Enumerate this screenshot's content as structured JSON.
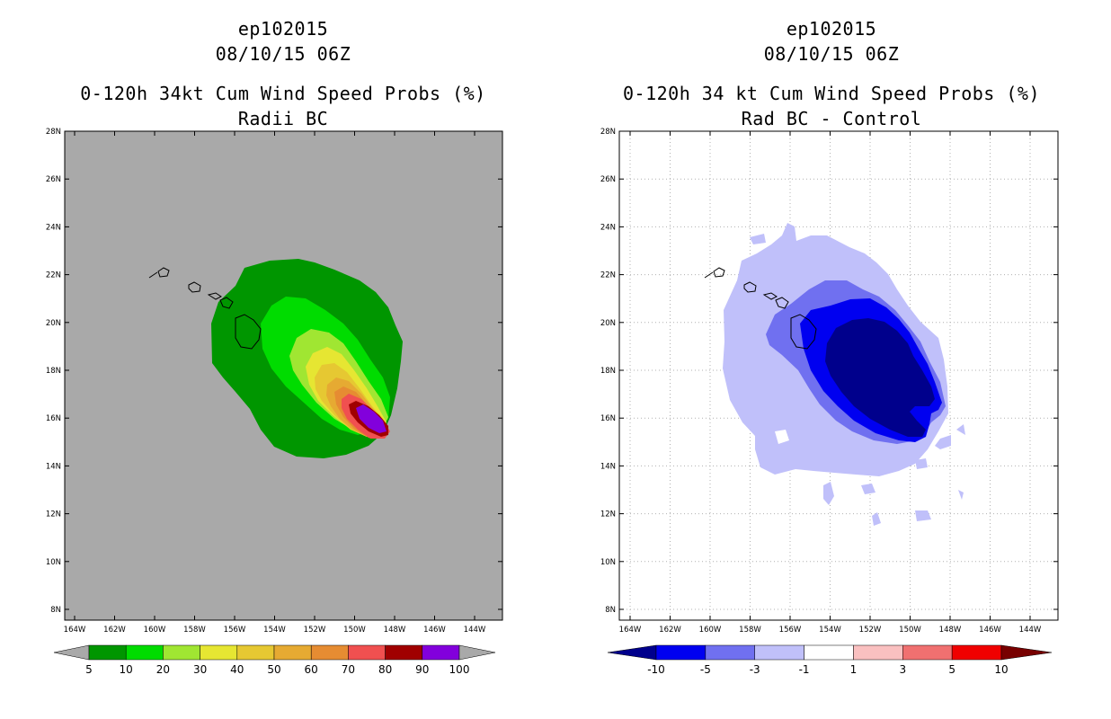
{
  "left_panel": {
    "storm_id": "ep102015",
    "datetime": "08/10/15 06Z",
    "title": "0-120h 34kt Cum Wind Speed Probs (%)",
    "subtitle": "Radii BC",
    "background_color": "#a9a9a9",
    "colorbar": {
      "colors": [
        "#009600",
        "#00dc00",
        "#a0e632",
        "#e6e632",
        "#e6c832",
        "#e6aa32",
        "#e68c32",
        "#f05050",
        "#a00000",
        "#8200dc"
      ],
      "labels": [
        "5",
        "10",
        "20",
        "30",
        "40",
        "50",
        "60",
        "70",
        "80",
        "90",
        "100"
      ]
    }
  },
  "right_panel": {
    "storm_id": "ep102015",
    "datetime": "08/10/15 06Z",
    "title": "0-120h 34 kt Cum Wind Speed Probs (%)",
    "subtitle": "Rad BC - Control",
    "background_color": "#ffffff",
    "colorbar": {
      "colors": [
        "#00008c",
        "#0000f0",
        "#7070f0",
        "#c0c0fa",
        "#ffffff",
        "#fac0c0",
        "#f07070",
        "#f00000",
        "#780000"
      ],
      "labels": [
        "-10",
        "-5",
        "-3",
        "-1",
        "1",
        "3",
        "5",
        "10"
      ]
    }
  },
  "map": {
    "lat_labels": [
      "28N",
      "26N",
      "24N",
      "22N",
      "20N",
      "18N",
      "16N",
      "14N",
      "12N",
      "10N",
      "8N"
    ],
    "lon_labels": [
      "164W",
      "162W",
      "160W",
      "158W",
      "156W",
      "154W",
      "152W",
      "150W",
      "148W",
      "146W",
      "144W"
    ]
  }
}
